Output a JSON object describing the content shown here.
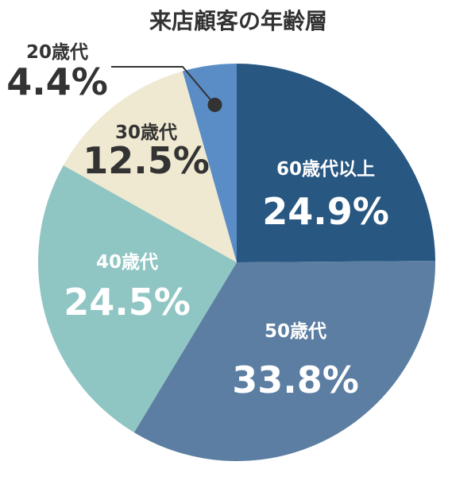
{
  "chart_data": {
    "type": "pie",
    "title": "来店顧客の年齢層",
    "start_angle_deg": 0,
    "direction": "clockwise",
    "colors": {
      "text_dark": "#333333",
      "text_light": "#ffffff"
    },
    "slices": [
      {
        "label": "60歳代以上",
        "value": 24.9,
        "percent_text": "24.9%",
        "color": "#285782",
        "text_color": "#ffffff"
      },
      {
        "label": "50歳代",
        "value": 33.8,
        "percent_text": "33.8%",
        "color": "#5b7ea2",
        "text_color": "#ffffff"
      },
      {
        "label": "40歳代",
        "value": 24.5,
        "percent_text": "24.5%",
        "color": "#8fc5c3",
        "text_color": "#ffffff"
      },
      {
        "label": "30歳代",
        "value": 12.5,
        "percent_text": "12.5%",
        "color": "#efe9d2",
        "text_color": "#333333"
      },
      {
        "label": "20歳代",
        "value": 4.4,
        "percent_text": "4.4%",
        "color": "#5a8dc6",
        "text_color": "#333333",
        "callout": true
      }
    ]
  }
}
